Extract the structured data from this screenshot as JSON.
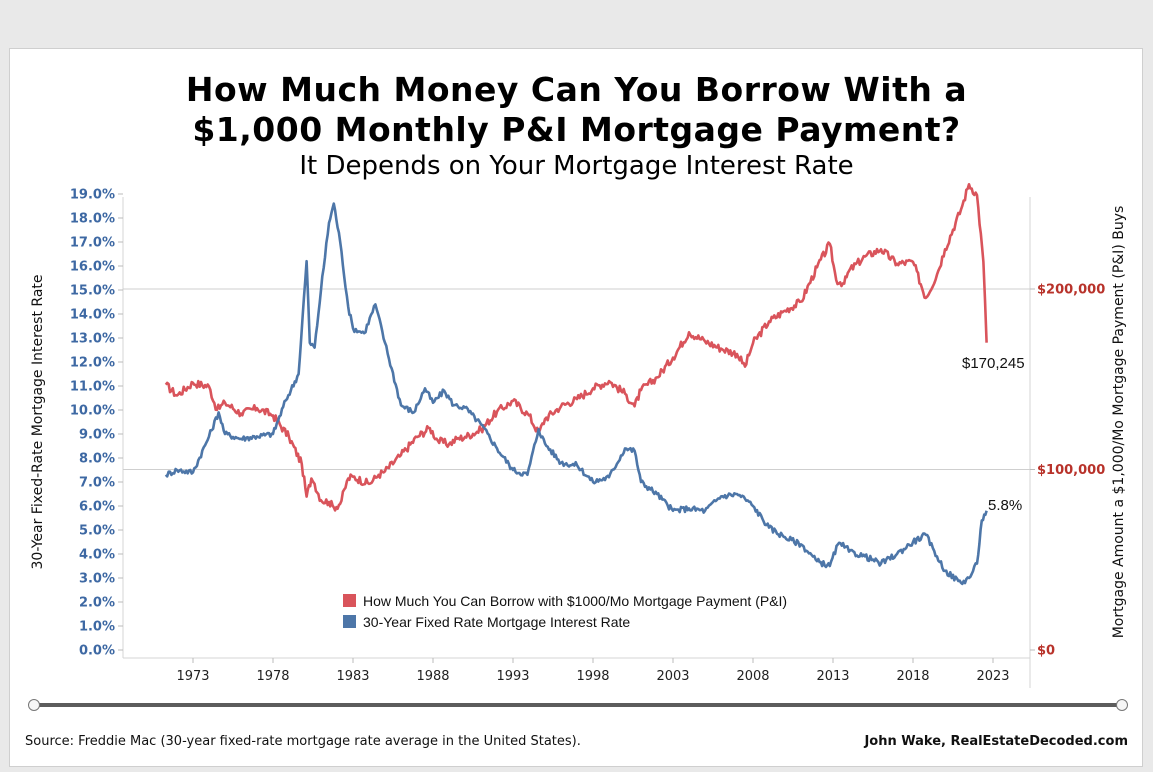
{
  "chart_data": {
    "type": "line",
    "title": "How Much Money Can You Borrow With a",
    "title_line2": "$1,000 Monthly P&I Mortgage Payment?",
    "subtitle": "It Depends on Your Mortgage Interest Rate",
    "ylabel_left": "30-Year Fixed-Rate Mortgage Interest Rate",
    "ylabel_right": "Mortgage Amount a $1,000/Mo Mortgage Payment (P&I) Buys",
    "left_axis": {
      "range": [
        0,
        19
      ],
      "tick_values": [
        0,
        1,
        2,
        3,
        4,
        5,
        6,
        7,
        8,
        9,
        10,
        11,
        12,
        13,
        14,
        15,
        16,
        17,
        18,
        19
      ],
      "tick_labels": [
        "0.0%",
        "1.0%",
        "2.0%",
        "3.0%",
        "4.0%",
        "5.0%",
        "6.0%",
        "7.0%",
        "8.0%",
        "9.0%",
        "10.0%",
        "11.0%",
        "12.0%",
        "13.0%",
        "14.0%",
        "15.0%",
        "16.0%",
        "17.0%",
        "18.0%",
        "19.0%"
      ]
    },
    "right_axis": {
      "range": [
        0,
        280000
      ],
      "tick_values": [
        0,
        100000,
        200000
      ],
      "tick_labels": [
        "$0",
        "$100,000",
        "$200,000"
      ]
    },
    "x_ticks": [
      "1973",
      "1978",
      "1983",
      "1988",
      "1993",
      "1998",
      "2003",
      "2008",
      "2013",
      "2018",
      "2023"
    ],
    "x_range": [
      1971.2,
      2025.5
    ],
    "gridlines_right": [
      100000,
      200000
    ],
    "legend_position": "bottom-center",
    "series": [
      {
        "name": "How Much You Can Borrow with $1000/Mo Mortgage Payment (P&I)",
        "axis": "right",
        "color": "#d9545b",
        "x": [
          1971.3,
          1972,
          1973,
          1974,
          1974.5,
          1975,
          1976,
          1977,
          1978,
          1979,
          1979.8,
          1980.1,
          1980.4,
          1980.6,
          1981,
          1981.5,
          1981.8,
          1982.2,
          1982.7,
          1983,
          1984,
          1984.6,
          1985,
          1986,
          1987,
          1987.8,
          1988.3,
          1989,
          1989.5,
          1990,
          1991,
          1992,
          1993,
          1994,
          1994.6,
          1995,
          1996,
          1997,
          1998,
          1999,
          2000,
          2000.6,
          2001,
          2002,
          2003,
          2004,
          2005,
          2006,
          2007,
          2007.5,
          2008,
          2009,
          2010,
          2011,
          2012,
          2012.8,
          2013.2,
          2013.7,
          2014,
          2015,
          2016,
          2017,
          2018,
          2018.8,
          2019.5,
          2020,
          2021,
          2021.5,
          2022,
          2022.4,
          2022.6
        ],
        "y": [
          147000,
          141000,
          148000,
          146000,
          133000,
          137000,
          131000,
          134000,
          130000,
          118000,
          103000,
          85000,
          95000,
          92000,
          83000,
          82000,
          79000,
          81000,
          95000,
          96000,
          92000,
          97000,
          99000,
          108000,
          118000,
          123000,
          116000,
          114000,
          117000,
          118000,
          122000,
          132000,
          138000,
          130000,
          120000,
          128000,
          135000,
          139000,
          145000,
          149000,
          142000,
          135000,
          144000,
          151000,
          162000,
          176000,
          171000,
          167000,
          164000,
          157000,
          170000,
          182000,
          188000,
          193000,
          212000,
          225000,
          205000,
          203000,
          210000,
          218000,
          222000,
          214000,
          215000,
          195000,
          208000,
          222000,
          244000,
          258000,
          252000,
          215000,
          170245
        ]
      },
      {
        "name": "30-Year Fixed Rate Mortgage Interest Rate",
        "axis": "left",
        "color": "#4d76a8",
        "x": [
          1971.3,
          1972,
          1973,
          1974,
          1974.6,
          1975,
          1976,
          1977,
          1978,
          1978.8,
          1979.6,
          1980.1,
          1980.3,
          1980.6,
          1981,
          1981.5,
          1981.8,
          1982.2,
          1982.7,
          1983,
          1983.7,
          1984.4,
          1985,
          1986,
          1986.8,
          1987.5,
          1988,
          1988.7,
          1989.3,
          1990,
          1991,
          1992,
          1993,
          1993.9,
          1994.6,
          1995,
          1996,
          1997,
          1998,
          1999,
          2000,
          2000.6,
          2001,
          2002,
          2003,
          2004,
          2005,
          2006,
          2007,
          2007.5,
          2008,
          2009,
          2010,
          2011,
          2012,
          2012.8,
          2013.3,
          2013.8,
          2014,
          2015,
          2016,
          2017,
          2018,
          2018.8,
          2019.5,
          2020,
          2021,
          2021.5,
          2022,
          2022.3,
          2022.6
        ],
        "y": [
          7.3,
          7.5,
          7.4,
          8.9,
          9.9,
          9.0,
          8.8,
          8.9,
          9.0,
          10.4,
          11.5,
          16.2,
          12.8,
          12.6,
          15.0,
          17.8,
          18.6,
          17.0,
          14.3,
          13.4,
          13.2,
          14.4,
          12.8,
          10.2,
          9.9,
          10.9,
          10.3,
          10.8,
          10.2,
          10.1,
          9.4,
          8.4,
          7.5,
          7.3,
          9.2,
          8.6,
          7.8,
          7.7,
          7.0,
          7.2,
          8.4,
          8.3,
          7.0,
          6.5,
          5.8,
          5.9,
          5.8,
          6.4,
          6.5,
          6.3,
          6.0,
          5.1,
          4.7,
          4.4,
          3.7,
          3.5,
          4.4,
          4.3,
          4.1,
          3.9,
          3.6,
          4.0,
          4.5,
          4.8,
          3.9,
          3.3,
          2.8,
          3.0,
          3.6,
          5.4,
          5.8
        ]
      }
    ],
    "annotations": [
      "$170,245",
      "5.8%"
    ]
  },
  "footer": {
    "source": "Source: Freddie Mac (30-year fixed-rate mortgage rate average in the United States).",
    "credit": "John Wake, RealEstateDecoded.com"
  }
}
